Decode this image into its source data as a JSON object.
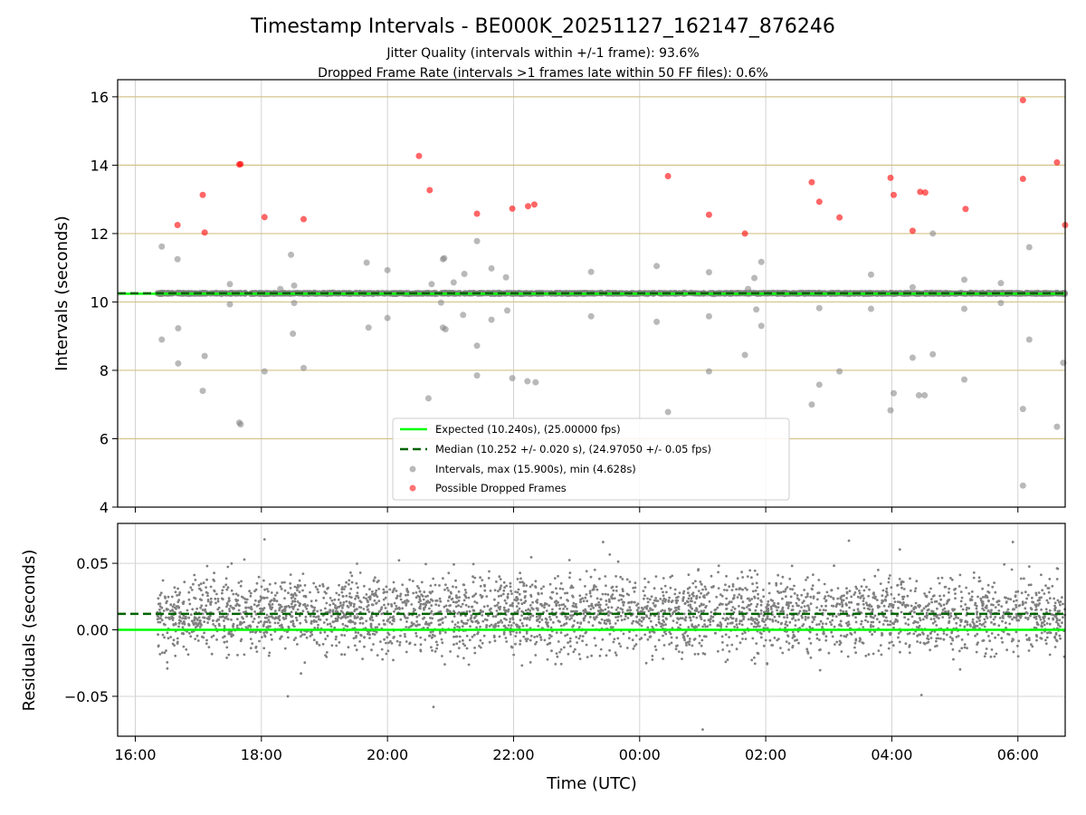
{
  "chart_data": [
    {
      "type": "scatter",
      "title": "Timestamp Intervals - BE000K_20251127_162147_876246",
      "subtitle_lines": [
        "Jitter Quality (intervals within +/-1 frame): 93.6%",
        "Dropped Frame Rate (intervals >1 frames late within 50 FF files): 0.6%"
      ],
      "xlabel": "Time (UTC)",
      "ylabel": "Intervals (seconds)",
      "x_range_hours": [
        15.72,
        30.75
      ],
      "ylim": [
        4,
        16.5
      ],
      "yticks": [
        4,
        6,
        8,
        10,
        12,
        14,
        16
      ],
      "ytick_labels": [
        "4",
        "6",
        "8",
        "10",
        "12",
        "14",
        "16"
      ],
      "xticks_hours": [
        16,
        18,
        20,
        22,
        24,
        26,
        28,
        30
      ],
      "xtick_labels": [
        "16:00",
        "18:00",
        "20:00",
        "22:00",
        "00:00",
        "02:00",
        "04:00",
        "06:00"
      ],
      "data_start_hour": 16.35,
      "expected_interval": 10.24,
      "median_interval": 10.252,
      "legend": [
        "Expected (10.240s), (25.00000 fps)",
        "Median (10.252 +/- 0.020 s), (24.97050 +/- 0.05 fps)",
        "Intervals, max (15.900s), min (4.628s)",
        "Possible Dropped Frames"
      ],
      "series_intervals_outliers": [
        [
          16.42,
          11.62
        ],
        [
          16.42,
          8.9
        ],
        [
          16.67,
          11.25
        ],
        [
          16.68,
          9.23
        ],
        [
          16.68,
          8.2
        ],
        [
          17.07,
          7.4
        ],
        [
          17.1,
          8.42
        ],
        [
          17.5,
          10.52
        ],
        [
          17.5,
          9.93
        ],
        [
          17.65,
          6.47
        ],
        [
          17.67,
          6.42
        ],
        [
          18.05,
          7.97
        ],
        [
          18.3,
          10.38
        ],
        [
          18.47,
          11.38
        ],
        [
          18.5,
          9.07
        ],
        [
          18.52,
          10.48
        ],
        [
          18.52,
          9.97
        ],
        [
          18.67,
          8.07
        ],
        [
          19.67,
          11.15
        ],
        [
          19.7,
          9.25
        ],
        [
          20.0,
          10.93
        ],
        [
          20.0,
          9.53
        ],
        [
          20.65,
          7.18
        ],
        [
          20.7,
          10.52
        ],
        [
          20.85,
          9.98
        ],
        [
          20.88,
          11.25
        ],
        [
          20.9,
          11.28
        ],
        [
          20.88,
          9.25
        ],
        [
          20.92,
          9.2
        ],
        [
          21.05,
          10.57
        ],
        [
          21.2,
          9.62
        ],
        [
          21.22,
          10.82
        ],
        [
          21.42,
          11.78
        ],
        [
          21.42,
          8.72
        ],
        [
          21.42,
          7.85
        ],
        [
          21.65,
          10.98
        ],
        [
          21.65,
          9.48
        ],
        [
          21.88,
          10.72
        ],
        [
          21.9,
          9.75
        ],
        [
          21.98,
          7.77
        ],
        [
          22.22,
          7.68
        ],
        [
          22.35,
          7.65
        ],
        [
          23.23,
          10.88
        ],
        [
          23.23,
          9.58
        ],
        [
          24.27,
          11.05
        ],
        [
          24.27,
          9.42
        ],
        [
          24.45,
          6.78
        ],
        [
          25.1,
          10.87
        ],
        [
          25.1,
          9.58
        ],
        [
          25.1,
          7.97
        ],
        [
          25.67,
          8.45
        ],
        [
          25.72,
          10.38
        ],
        [
          25.82,
          10.7
        ],
        [
          25.85,
          9.78
        ],
        [
          25.93,
          11.17
        ],
        [
          25.93,
          9.3
        ],
        [
          26.73,
          7.0
        ],
        [
          26.85,
          7.58
        ],
        [
          26.85,
          9.82
        ],
        [
          27.17,
          7.97
        ],
        [
          27.67,
          10.8
        ],
        [
          27.67,
          9.8
        ],
        [
          27.98,
          6.83
        ],
        [
          28.03,
          7.33
        ],
        [
          28.33,
          10.43
        ],
        [
          28.33,
          8.37
        ],
        [
          28.43,
          7.27
        ],
        [
          28.52,
          7.27
        ],
        [
          28.65,
          12.0
        ],
        [
          28.65,
          8.47
        ],
        [
          29.15,
          10.65
        ],
        [
          29.15,
          9.8
        ],
        [
          29.15,
          7.73
        ],
        [
          29.73,
          10.55
        ],
        [
          29.73,
          9.97
        ],
        [
          30.08,
          6.87
        ],
        [
          30.08,
          4.63
        ],
        [
          30.18,
          11.6
        ],
        [
          30.18,
          8.9
        ],
        [
          30.62,
          6.35
        ],
        [
          30.72,
          8.22
        ]
      ],
      "series_dropped_frames": [
        [
          16.67,
          12.25
        ],
        [
          17.07,
          13.13
        ],
        [
          17.1,
          12.03
        ],
        [
          17.65,
          14.02
        ],
        [
          17.67,
          14.03
        ],
        [
          18.05,
          12.48
        ],
        [
          18.67,
          12.42
        ],
        [
          20.5,
          14.27
        ],
        [
          20.67,
          13.27
        ],
        [
          21.42,
          12.58
        ],
        [
          21.98,
          12.73
        ],
        [
          22.23,
          12.8
        ],
        [
          22.33,
          12.85
        ],
        [
          24.45,
          13.68
        ],
        [
          25.1,
          12.55
        ],
        [
          25.67,
          12.0
        ],
        [
          26.73,
          13.5
        ],
        [
          26.85,
          12.93
        ],
        [
          27.17,
          12.47
        ],
        [
          27.98,
          13.63
        ],
        [
          28.03,
          13.13
        ],
        [
          28.33,
          12.08
        ],
        [
          28.45,
          13.22
        ],
        [
          28.53,
          13.2
        ],
        [
          29.17,
          12.72
        ],
        [
          30.08,
          13.6
        ],
        [
          30.08,
          15.9
        ],
        [
          30.62,
          14.08
        ],
        [
          30.75,
          12.25
        ]
      ],
      "main_band_note": "dense run of intervals near 10.24-10.26 s from 16:21 onward"
    },
    {
      "type": "scatter",
      "xlabel": "Time (UTC)",
      "ylabel": "Residuals (seconds)",
      "x_range_hours": [
        15.72,
        30.75
      ],
      "ylim": [
        -0.08,
        0.08
      ],
      "yticks": [
        0.05,
        0.0,
        -0.05
      ],
      "ytick_labels": [
        "0.05",
        "0.00",
        "−0.05"
      ],
      "xticks_hours": [
        16,
        18,
        20,
        22,
        24,
        26,
        28,
        30
      ],
      "xtick_labels": [
        "16:00",
        "18:00",
        "20:00",
        "22:00",
        "00:00",
        "02:00",
        "04:00",
        "06:00"
      ],
      "expected_residual": 0.0,
      "median_residual": 0.012,
      "residual_mean": 0.012,
      "residual_std": 0.02,
      "residual_extremes": [
        [
          18.05,
          0.068
        ],
        [
          18.42,
          -0.05
        ],
        [
          20.73,
          -0.058
        ],
        [
          23.42,
          0.066
        ],
        [
          25.0,
          -0.075
        ],
        [
          27.32,
          0.067
        ],
        [
          28.47,
          -0.049
        ],
        [
          29.92,
          0.066
        ]
      ],
      "residual_point_count": 3500
    }
  ],
  "colors": {
    "expected": "#00ff00",
    "median": "#006400",
    "intervals": "#808080",
    "dropped": "#ff0000",
    "residuals": "#808080",
    "gold_grid": "#d4c38a",
    "grid": "#d3d3d3"
  }
}
